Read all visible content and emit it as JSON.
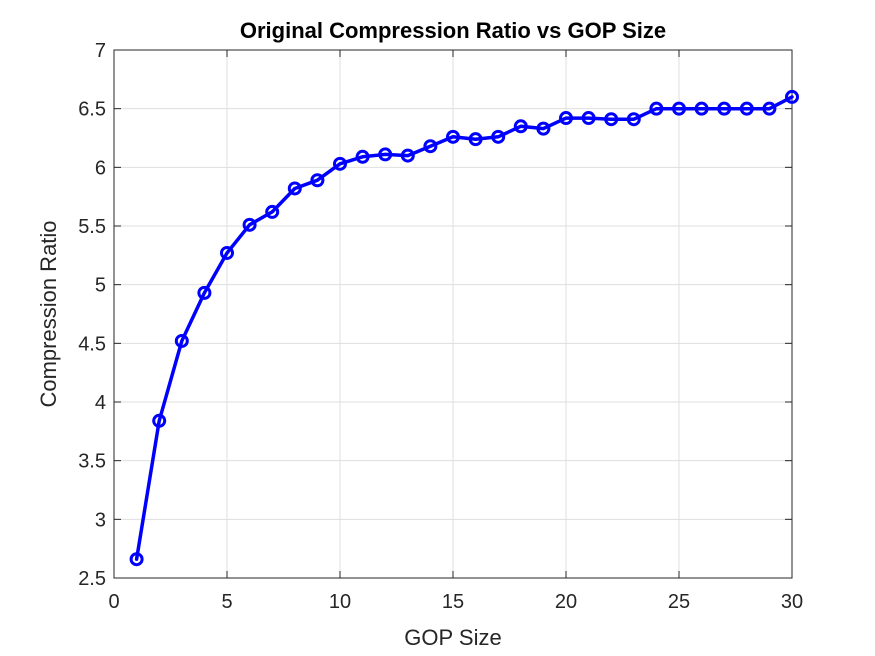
{
  "chart_data": {
    "type": "line",
    "title": "Original Compression Ratio vs GOP Size",
    "xlabel": "GOP Size",
    "ylabel": "Compression Ratio",
    "xlim": [
      0,
      30
    ],
    "ylim": [
      2.5,
      7
    ],
    "xticks": [
      0,
      5,
      10,
      15,
      20,
      25,
      30
    ],
    "yticks": [
      2.5,
      3,
      3.5,
      4,
      4.5,
      5,
      5.5,
      6,
      6.5,
      7
    ],
    "xtick_labels": [
      "0",
      "5",
      "10",
      "15",
      "20",
      "25",
      "30"
    ],
    "ytick_labels": [
      "2.5",
      "3",
      "3.5",
      "4",
      "4.5",
      "5",
      "5.5",
      "6",
      "6.5",
      "7"
    ],
    "grid": true,
    "series": [
      {
        "name": "Compression Ratio",
        "color": "#0000ff",
        "marker": "circle",
        "x": [
          1,
          2,
          3,
          4,
          5,
          6,
          7,
          8,
          9,
          10,
          11,
          12,
          13,
          14,
          15,
          16,
          17,
          18,
          19,
          20,
          21,
          22,
          23,
          24,
          25,
          26,
          27,
          28,
          29,
          30
        ],
        "y": [
          2.66,
          3.84,
          4.52,
          4.93,
          5.27,
          5.51,
          5.62,
          5.82,
          5.89,
          6.03,
          6.09,
          6.11,
          6.1,
          6.18,
          6.26,
          6.24,
          6.26,
          6.35,
          6.33,
          6.42,
          6.42,
          6.41,
          6.41,
          6.5,
          6.5,
          6.5,
          6.5,
          6.5,
          6.5,
          6.6
        ]
      }
    ]
  },
  "colors": {
    "line": "#0000ff",
    "grid": "#dfdfdf",
    "axis": "#262626",
    "background": "#ffffff"
  }
}
